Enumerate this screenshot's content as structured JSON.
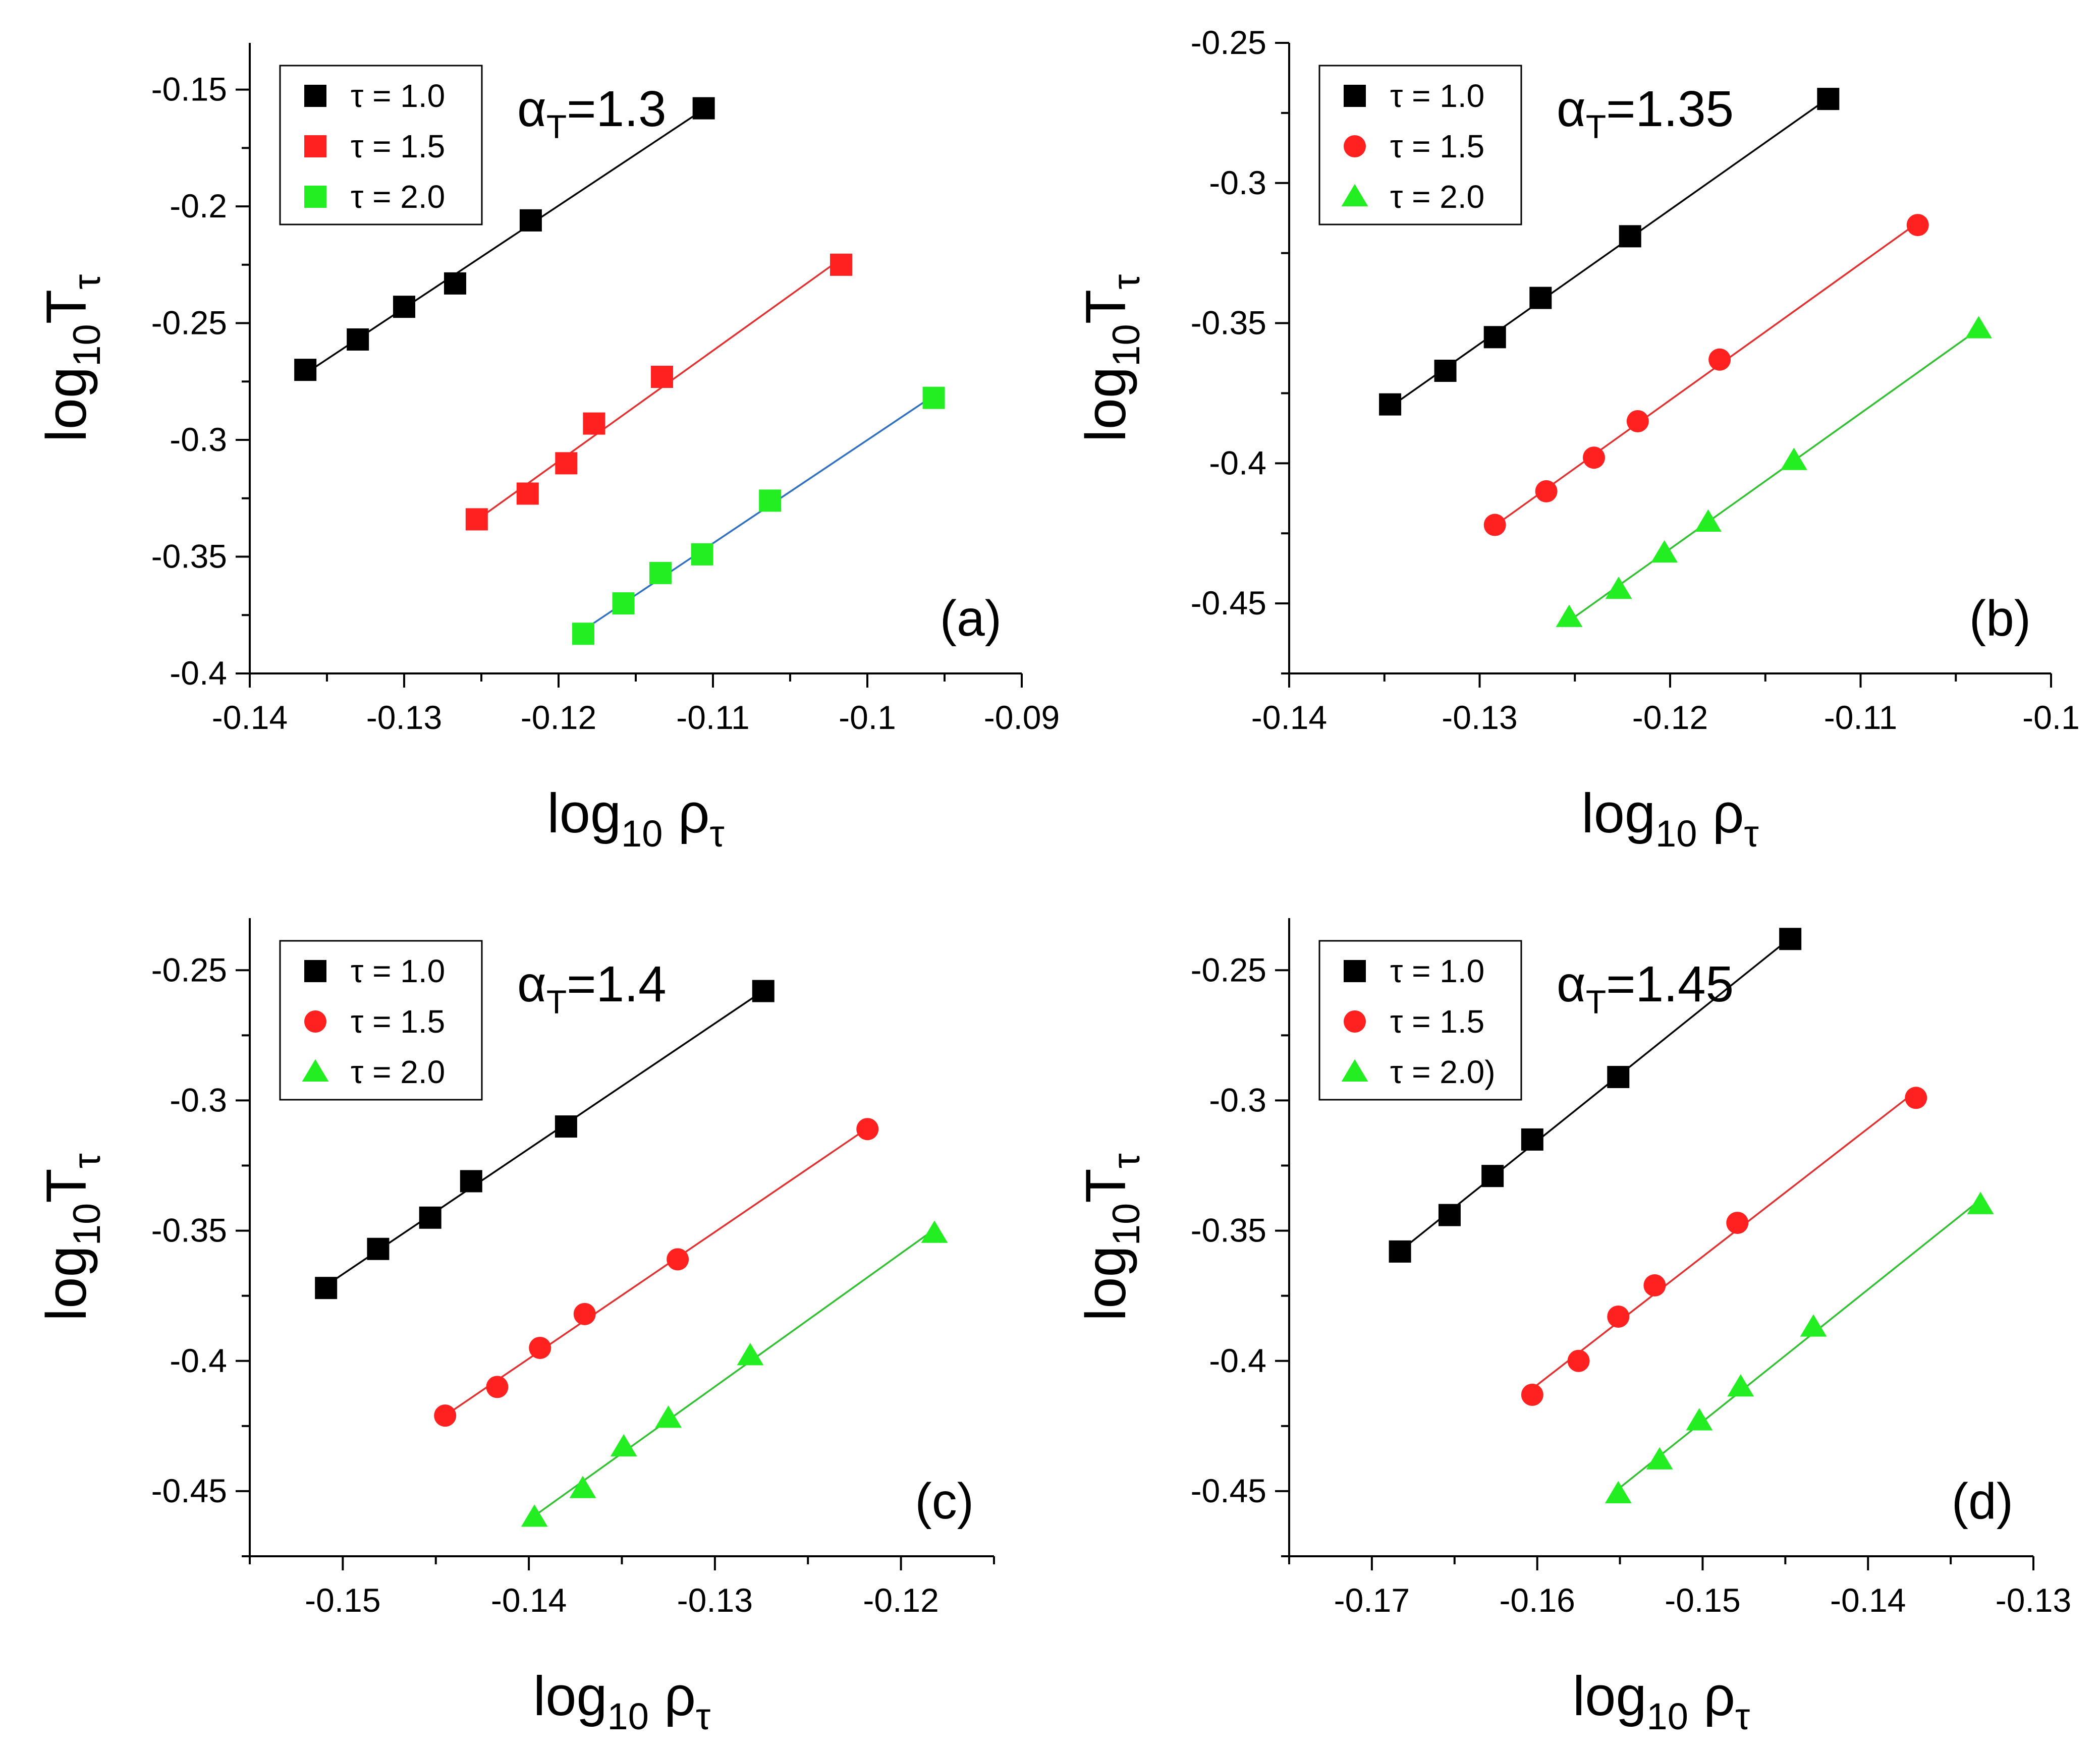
{
  "figure": {
    "marker_size_note": "markers are drawn by script from series values",
    "x_axis_label": "log10 ρτ",
    "y_axis_label": "log10 Tτ"
  },
  "chart_data": [
    {
      "panel": "(a)",
      "type": "scatter",
      "annotation": "αT=1.3",
      "xlim": [
        -0.14,
        -0.09
      ],
      "ylim": [
        -0.4,
        -0.13
      ],
      "xticks": [
        "-0.14",
        "-0.13",
        "-0.12",
        "-0.11",
        "-0.1",
        "-0.09"
      ],
      "yticks": [
        "-0.4",
        "-0.35",
        "-0.3",
        "-0.25",
        "-0.2",
        "-0.15"
      ],
      "xlabel": "log10 ρτ",
      "ylabel": "log10 Tτ",
      "legend_position": "top-left",
      "series": [
        {
          "name": "τ = 1.0",
          "color": "#000000",
          "marker": "square",
          "line_color": "#000000",
          "x": [
            -0.1364,
            -0.133,
            -0.13,
            -0.1267,
            -0.1218,
            -0.1106
          ],
          "y": [
            -0.27,
            -0.257,
            -0.243,
            -0.233,
            -0.206,
            -0.158
          ]
        },
        {
          "name": "τ = 1.5",
          "color": "#ff2020",
          "marker": "square",
          "line_color": "#e03030",
          "x": [
            -0.1253,
            -0.122,
            -0.1195,
            -0.1177,
            -0.1133,
            -0.1017
          ],
          "y": [
            -0.334,
            -0.323,
            -0.31,
            -0.293,
            -0.273,
            -0.225
          ]
        },
        {
          "name": "τ = 2.0",
          "color": "#22ee22",
          "marker": "square",
          "line_color": "#3070c0",
          "x": [
            -0.1184,
            -0.1158,
            -0.1134,
            -0.1107,
            -0.1063,
            -0.0957
          ],
          "y": [
            -0.383,
            -0.37,
            -0.357,
            -0.349,
            -0.326,
            -0.282
          ]
        }
      ]
    },
    {
      "panel": "(b)",
      "type": "scatter",
      "annotation": "αT=1.35",
      "xlim": [
        -0.14,
        -0.1
      ],
      "ylim": [
        -0.475,
        -0.25
      ],
      "xticks": [
        "-0.14",
        "-0.13",
        "-0.12",
        "-0.11",
        "-0.1"
      ],
      "yticks": [
        "-0.45",
        "-0.4",
        "-0.35",
        "-0.3",
        "-0.25"
      ],
      "xlabel": "log10 ρτ",
      "ylabel": "log10 Tτ",
      "legend_position": "top-left",
      "series": [
        {
          "name": "τ = 1.0",
          "color": "#000000",
          "marker": "square",
          "line_color": "#000000",
          "x": [
            -0.1347,
            -0.1318,
            -0.1292,
            -0.1268,
            -0.1221,
            -0.1117
          ],
          "y": [
            -0.379,
            -0.367,
            -0.355,
            -0.341,
            -0.319,
            -0.27
          ]
        },
        {
          "name": "τ = 1.5",
          "color": "#ff2020",
          "marker": "circle",
          "line_color": "#e03030",
          "x": [
            -0.1292,
            -0.1265,
            -0.124,
            -0.1217,
            -0.1174,
            -0.107
          ],
          "y": [
            -0.422,
            -0.41,
            -0.398,
            -0.385,
            -0.363,
            -0.315
          ]
        },
        {
          "name": "τ = 2.0",
          "color": "#22ee22",
          "marker": "triangle",
          "line_color": "#30c030",
          "x": [
            -0.1253,
            -0.1227,
            -0.1203,
            -0.118,
            -0.1135,
            -0.1038
          ],
          "y": [
            -0.455,
            -0.445,
            -0.432,
            -0.421,
            -0.399,
            -0.352
          ]
        }
      ]
    },
    {
      "panel": "(c)",
      "type": "scatter",
      "annotation": "αT=1.4",
      "xlim": [
        -0.155,
        -0.115
      ],
      "ylim": [
        -0.475,
        -0.23
      ],
      "xticks": [
        "-0.15",
        "-0.14",
        "-0.13",
        "-0.12"
      ],
      "yticks": [
        "-0.45",
        "-0.4",
        "-0.35",
        "-0.3",
        "-0.25"
      ],
      "xlabel": "log10 ρτ",
      "ylabel": "log10 Tτ",
      "legend_position": "top-left",
      "series": [
        {
          "name": "τ = 1.0",
          "color": "#000000",
          "marker": "square",
          "line_color": "#000000",
          "x": [
            -0.1509,
            -0.1481,
            -0.1453,
            -0.1431,
            -0.138,
            -0.1274
          ],
          "y": [
            -0.372,
            -0.357,
            -0.345,
            -0.331,
            -0.31,
            -0.258
          ]
        },
        {
          "name": "τ = 1.5",
          "color": "#ff2020",
          "marker": "circle",
          "line_color": "#e03030",
          "x": [
            -0.1445,
            -0.1417,
            -0.1394,
            -0.137,
            -0.132,
            -0.1218
          ],
          "y": [
            -0.421,
            -0.41,
            -0.395,
            -0.382,
            -0.361,
            -0.311
          ]
        },
        {
          "name": "τ = 2.0",
          "color": "#22ee22",
          "marker": "triangle",
          "line_color": "#30c030",
          "x": [
            -0.1397,
            -0.1371,
            -0.1349,
            -0.1325,
            -0.1281,
            -0.1182
          ],
          "y": [
            -0.46,
            -0.449,
            -0.433,
            -0.422,
            -0.398,
            -0.351
          ]
        }
      ]
    },
    {
      "panel": "(d)",
      "type": "scatter",
      "annotation": "αT=1.45",
      "xlim": [
        -0.175,
        -0.13
      ],
      "ylim": [
        -0.475,
        -0.23
      ],
      "xticks": [
        "-0.17",
        "-0.16",
        "-0.15",
        "-0.14",
        "-0.13"
      ],
      "yticks": [
        "-0.45",
        "-0.4",
        "-0.35",
        "-0.3",
        "-0.25"
      ],
      "xlabel": "log10 ρτ",
      "ylabel": "log10 Tτ",
      "legend_position": "top-left",
      "series": [
        {
          "name": "τ = 1.0",
          "color": "#000000",
          "marker": "square",
          "line_color": "#000000",
          "x": [
            -0.1683,
            -0.1653,
            -0.1627,
            -0.1603,
            -0.1551,
            -0.1447
          ],
          "y": [
            -0.358,
            -0.344,
            -0.329,
            -0.315,
            -0.291,
            -0.238
          ]
        },
        {
          "name": "τ = 1.5",
          "color": "#ff2020",
          "marker": "circle",
          "line_color": "#e03030",
          "x": [
            -0.1603,
            -0.1575,
            -0.1551,
            -0.1529,
            -0.1479,
            -0.1371
          ],
          "y": [
            -0.413,
            -0.4,
            -0.383,
            -0.371,
            -0.347,
            -0.299
          ]
        },
        {
          "name": "τ = 2.0)",
          "color": "#22ee22",
          "marker": "triangle",
          "line_color": "#30c030",
          "x": [
            -0.1551,
            -0.1526,
            -0.1502,
            -0.1477,
            -0.1433,
            -0.1332
          ],
          "y": [
            -0.451,
            -0.438,
            -0.423,
            -0.41,
            -0.387,
            -0.34
          ]
        }
      ]
    }
  ]
}
